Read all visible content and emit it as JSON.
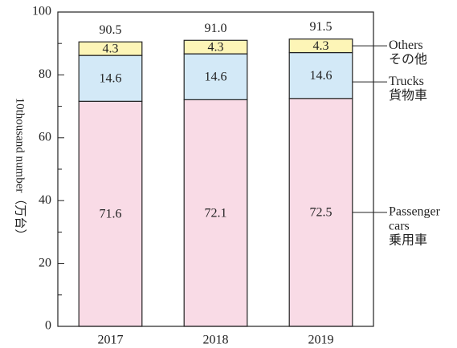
{
  "chart_data": {
    "type": "stacked_bar",
    "y_label": "10thousand number（万台）",
    "categories": [
      "2017",
      "2018",
      "2019"
    ],
    "series": [
      {
        "name": [
          "Passenger",
          "cars",
          "乗用車"
        ],
        "color": "#f9dbe6",
        "values": [
          71.6,
          72.1,
          72.5
        ]
      },
      {
        "name": [
          "Trucks",
          "貨物車"
        ],
        "color": "#d3e9f7",
        "values": [
          14.6,
          14.6,
          14.6
        ]
      },
      {
        "name": [
          "Others",
          "その他"
        ],
        "color": "#fdf5b7",
        "values": [
          4.3,
          4.3,
          4.3
        ]
      }
    ],
    "totals": [
      90.5,
      91.0,
      91.5
    ],
    "totals_labels": [
      "90.5",
      "91.0",
      "91.5"
    ],
    "ylim": [
      0,
      100
    ],
    "yticks": [
      0,
      20,
      40,
      60,
      80,
      100
    ],
    "yminorticks": [
      10,
      30,
      50,
      70,
      90
    ]
  }
}
